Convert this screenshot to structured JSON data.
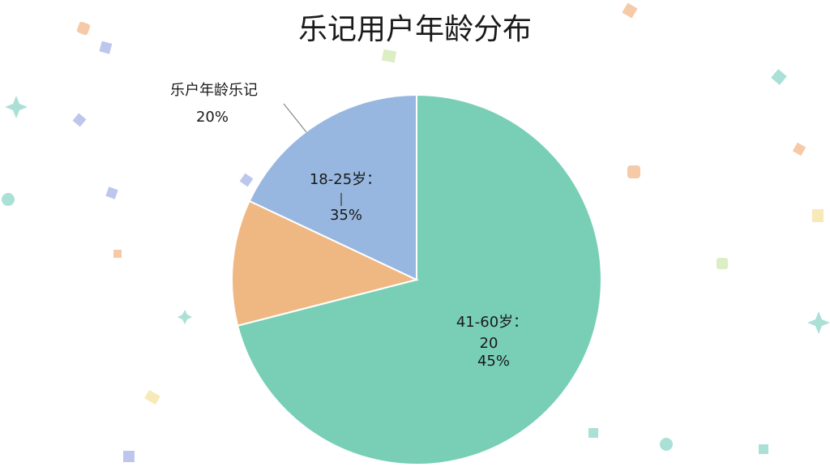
{
  "chart_data": {
    "type": "pie",
    "title": "乐记用户年龄分布",
    "categories": [
      "41-60岁：",
      null,
      "18-25岁："
    ],
    "values": [
      71,
      11,
      18
    ],
    "colors": [
      "#78cfb6",
      "#efb883",
      "#97b7e0"
    ],
    "start_angle": 90,
    "direction": "clockwise",
    "annotations": [
      "20",
      "45%",
      "35%",
      "乐户年龄乐记",
      "20%"
    ]
  }
}
